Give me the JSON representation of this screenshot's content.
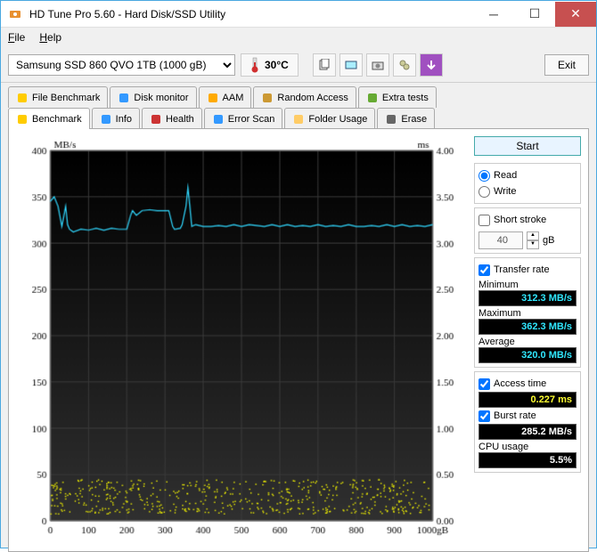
{
  "window": {
    "title": "HD Tune Pro 5.60 - Hard Disk/SSD Utility"
  },
  "menu": {
    "file": "File",
    "help": "Help"
  },
  "toolbar": {
    "drive": "Samsung SSD 860 QVO 1TB (1000 gB)",
    "temperature": "30°C",
    "exit": "Exit"
  },
  "tabs_row1": [
    {
      "label": "File Benchmark",
      "icon": "file-bench-icon",
      "color": "#ffcc00"
    },
    {
      "label": "Disk monitor",
      "icon": "monitor-icon",
      "color": "#3399ff"
    },
    {
      "label": "AAM",
      "icon": "speaker-icon",
      "color": "#ffaa00"
    },
    {
      "label": "Random Access",
      "icon": "random-icon",
      "color": "#cc9933"
    },
    {
      "label": "Extra tests",
      "icon": "extra-icon",
      "color": "#66aa33"
    }
  ],
  "tabs_row2": [
    {
      "label": "Benchmark",
      "icon": "bulb-icon",
      "active": true,
      "color": "#ffcc00"
    },
    {
      "label": "Info",
      "icon": "info-icon",
      "color": "#3399ff"
    },
    {
      "label": "Health",
      "icon": "health-icon",
      "color": "#cc3333"
    },
    {
      "label": "Error Scan",
      "icon": "scan-icon",
      "color": "#3399ff"
    },
    {
      "label": "Folder Usage",
      "icon": "folder-icon",
      "color": "#ffcc66"
    },
    {
      "label": "Erase",
      "icon": "erase-icon",
      "color": "#666666"
    }
  ],
  "chart": {
    "type": "line+scatter",
    "y_left_label": "MB/s",
    "y_right_label": "ms",
    "x_label_suffix": "gB",
    "background": "#1a1a1a",
    "grid_color": "#3a3a3a",
    "border_color": "#808080",
    "y_left": {
      "min": 0,
      "max": 400,
      "ticks": [
        0,
        50,
        100,
        150,
        200,
        250,
        300,
        350,
        400
      ]
    },
    "y_right": {
      "min": 0,
      "max": 4.0,
      "ticks": [
        0,
        0.5,
        1.0,
        1.5,
        2.0,
        2.5,
        3.0,
        3.5,
        4.0
      ]
    },
    "x": {
      "min": 0,
      "max": 1000,
      "ticks": [
        0,
        100,
        200,
        300,
        400,
        500,
        600,
        700,
        800,
        900,
        1000
      ]
    },
    "transfer_line": {
      "color": "#30d8ff",
      "width": 1.2,
      "data": [
        [
          0,
          345
        ],
        [
          10,
          350
        ],
        [
          20,
          340
        ],
        [
          30,
          318
        ],
        [
          40,
          340
        ],
        [
          45,
          320
        ],
        [
          50,
          315
        ],
        [
          60,
          312
        ],
        [
          80,
          315
        ],
        [
          100,
          314
        ],
        [
          120,
          316
        ],
        [
          140,
          314
        ],
        [
          160,
          316
        ],
        [
          180,
          315
        ],
        [
          200,
          315
        ],
        [
          210,
          330
        ],
        [
          215,
          335
        ],
        [
          225,
          330
        ],
        [
          240,
          335
        ],
        [
          260,
          336
        ],
        [
          280,
          335
        ],
        [
          300,
          335
        ],
        [
          310,
          335
        ],
        [
          320,
          318
        ],
        [
          325,
          315
        ],
        [
          340,
          316
        ],
        [
          345,
          320
        ],
        [
          350,
          330
        ],
        [
          355,
          340
        ],
        [
          360,
          360
        ],
        [
          365,
          340
        ],
        [
          370,
          318
        ],
        [
          380,
          320
        ],
        [
          400,
          318
        ],
        [
          420,
          318
        ],
        [
          440,
          319
        ],
        [
          460,
          318
        ],
        [
          480,
          320
        ],
        [
          500,
          318
        ],
        [
          520,
          320
        ],
        [
          540,
          319
        ],
        [
          560,
          318
        ],
        [
          580,
          320
        ],
        [
          600,
          318
        ],
        [
          620,
          320
        ],
        [
          640,
          318
        ],
        [
          660,
          319
        ],
        [
          680,
          318
        ],
        [
          700,
          320
        ],
        [
          720,
          318
        ],
        [
          740,
          319
        ],
        [
          760,
          318
        ],
        [
          780,
          320
        ],
        [
          800,
          318
        ],
        [
          820,
          318
        ],
        [
          840,
          319
        ],
        [
          860,
          318
        ],
        [
          880,
          320
        ],
        [
          900,
          318
        ],
        [
          920,
          320
        ],
        [
          940,
          318
        ],
        [
          960,
          319
        ],
        [
          980,
          318
        ],
        [
          1000,
          320
        ]
      ]
    },
    "access_scatter": {
      "color": "#f0f000",
      "size": 1.4,
      "cluster_band": [
        0.08,
        0.45
      ],
      "count": 550
    }
  },
  "side": {
    "start": "Start",
    "read": "Read",
    "write": "Write",
    "short_stroke": "Short stroke",
    "stroke_value": "40",
    "stroke_unit": "gB",
    "transfer_rate": "Transfer rate",
    "minimum_label": "Minimum",
    "minimum_value": "312.3 MB/s",
    "maximum_label": "Maximum",
    "maximum_value": "362.3 MB/s",
    "average_label": "Average",
    "average_value": "320.0 MB/s",
    "access_time": "Access time",
    "access_value": "0.227 ms",
    "burst_rate": "Burst rate",
    "burst_value": "285.2 MB/s",
    "cpu_usage": "CPU usage",
    "cpu_value": "5.5%"
  }
}
